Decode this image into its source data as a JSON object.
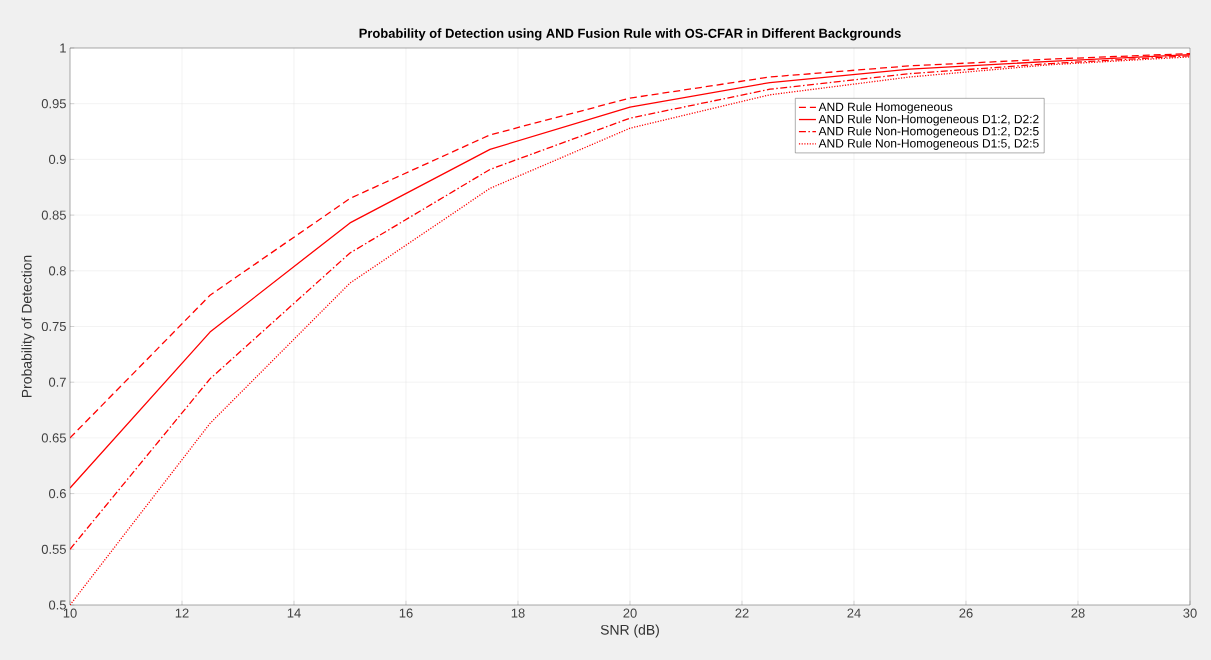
{
  "chart_data": {
    "type": "line",
    "title": "Probability of Detection using AND Fusion Rule with OS-CFAR in Different Backgrounds",
    "xlabel": "SNR (dB)",
    "ylabel": "Probability of Detection",
    "x": [
      10,
      12.5,
      15,
      17.5,
      20,
      22.5,
      25,
      27.5,
      30
    ],
    "series": [
      {
        "name": "AND Rule Homogeneous",
        "color": "#ff0000",
        "line_style": "dashed",
        "values": [
          0.65,
          0.778,
          0.865,
          0.922,
          0.955,
          0.974,
          0.984,
          0.99,
          0.995
        ]
      },
      {
        "name": "AND Rule Non-Homogeneous D1:2, D2:2",
        "color": "#ff0000",
        "line_style": "solid",
        "values": [
          0.605,
          0.745,
          0.843,
          0.909,
          0.947,
          0.969,
          0.981,
          0.988,
          0.994
        ]
      },
      {
        "name": "AND Rule Non-Homogeneous D1:2, D2:5",
        "color": "#ff0000",
        "line_style": "dashdot",
        "values": [
          0.55,
          0.703,
          0.816,
          0.891,
          0.937,
          0.963,
          0.977,
          0.986,
          0.993
        ]
      },
      {
        "name": "AND Rule Non-Homogeneous D1:5, D2:5",
        "color": "#ff0000",
        "line_style": "dotted",
        "values": [
          0.5,
          0.663,
          0.789,
          0.874,
          0.928,
          0.958,
          0.974,
          0.985,
          0.992
        ]
      }
    ],
    "xlim": [
      10,
      30
    ],
    "ylim": [
      0.5,
      1
    ],
    "xticks": [
      10,
      12,
      14,
      16,
      18,
      20,
      22,
      24,
      26,
      28,
      30
    ],
    "yticks": [
      0.5,
      0.55,
      0.6,
      0.65,
      0.7,
      0.75,
      0.8,
      0.85,
      0.9,
      0.95,
      1
    ],
    "grid": true,
    "legend": "top right",
    "marker": "none"
  }
}
